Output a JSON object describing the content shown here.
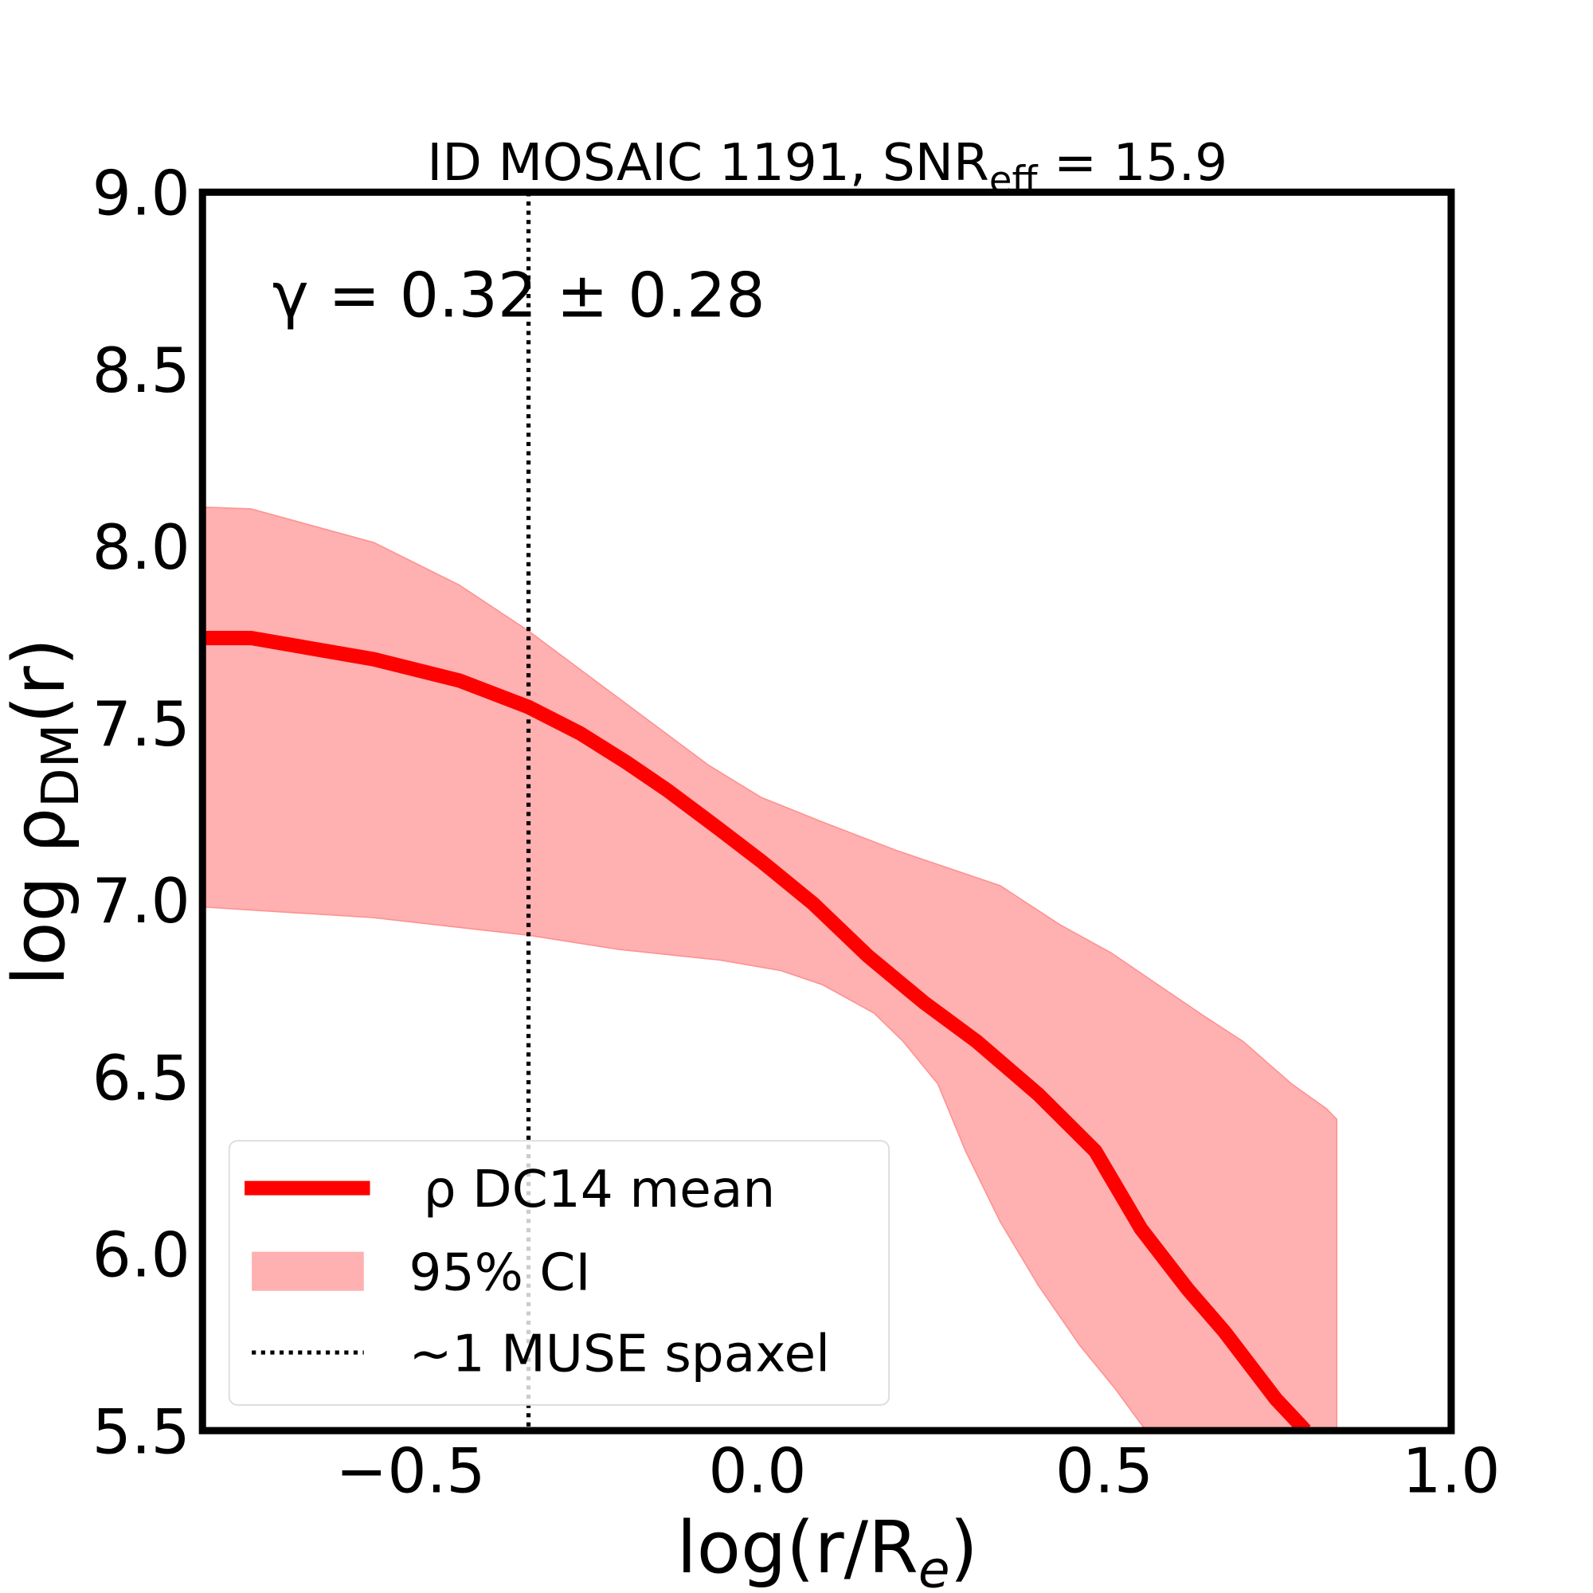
{
  "chart_data": {
    "type": "line",
    "title": "ID MOSAIC 1191, SNR",
    "title_sub": "eff",
    "title_suffix": " = 15.9",
    "annotation": "γ = 0.32 ± 0.28",
    "xlabel": "log(r/R",
    "xlabel_sub": "e",
    "xlabel_suffix": ")",
    "ylabel": "log ρ",
    "ylabel_sub": "DM",
    "ylabel_suffix": "(r)",
    "xlim": [
      -0.8,
      1.0
    ],
    "ylim": [
      5.5,
      9.0
    ],
    "xticks": [
      "−0.5",
      "0.0",
      "0.5",
      "1.0"
    ],
    "xtick_values": [
      -0.5,
      0.0,
      0.5,
      1.0
    ],
    "yticks": [
      "5.5",
      "6.0",
      "6.5",
      "7.0",
      "7.5",
      "8.0",
      "8.5",
      "9.0"
    ],
    "ytick_values": [
      5.5,
      6.0,
      6.5,
      7.0,
      7.5,
      8.0,
      8.5,
      9.0
    ],
    "grid": false,
    "legend_placement": "lower-left",
    "mean": {
      "name": "ρ DC14 mean",
      "color": "#ff0000",
      "x": [
        -0.8,
        -0.73,
        -0.553,
        -0.43,
        -0.33,
        -0.255,
        -0.19,
        -0.13,
        -0.055,
        0.005,
        0.08,
        0.16,
        0.24,
        0.316,
        0.405,
        0.487,
        0.553,
        0.62,
        0.673,
        0.747,
        0.79
      ],
      "y": [
        7.74,
        7.74,
        7.68,
        7.62,
        7.545,
        7.47,
        7.39,
        7.31,
        7.2,
        7.11,
        6.99,
        6.84,
        6.71,
        6.6,
        6.45,
        6.29,
        6.07,
        5.9,
        5.78,
        5.59,
        5.5
      ]
    },
    "ci": {
      "name": "95% CI",
      "color": "#ffb0b0",
      "upper_x": [
        -0.8,
        -0.73,
        -0.553,
        -0.43,
        -0.33,
        -0.2,
        -0.07,
        0.005,
        0.094,
        0.2,
        0.35,
        0.436,
        0.51,
        0.6,
        0.645,
        0.7,
        0.77,
        0.82,
        0.835
      ],
      "upper_y": [
        8.11,
        8.105,
        8.01,
        7.89,
        7.76,
        7.57,
        7.38,
        7.29,
        7.22,
        7.14,
        7.04,
        6.93,
        6.85,
        6.73,
        6.67,
        6.6,
        6.48,
        6.41,
        6.38
      ],
      "lower_x": [
        -0.8,
        -0.72,
        -0.555,
        -0.42,
        -0.33,
        -0.2,
        -0.055,
        0.034,
        0.094,
        0.168,
        0.21,
        0.26,
        0.3,
        0.35,
        0.405,
        0.465,
        0.515,
        0.56,
        0.835
      ],
      "lower_y": [
        6.98,
        6.97,
        6.95,
        6.92,
        6.9,
        6.86,
        6.83,
        6.8,
        6.76,
        6.68,
        6.6,
        6.48,
        6.29,
        6.09,
        5.91,
        5.74,
        5.62,
        5.5,
        5.5
      ]
    },
    "vline": {
      "name": "~1 MUSE spaxel",
      "x": -0.33,
      "color": "#000000",
      "style": "dotted"
    }
  }
}
